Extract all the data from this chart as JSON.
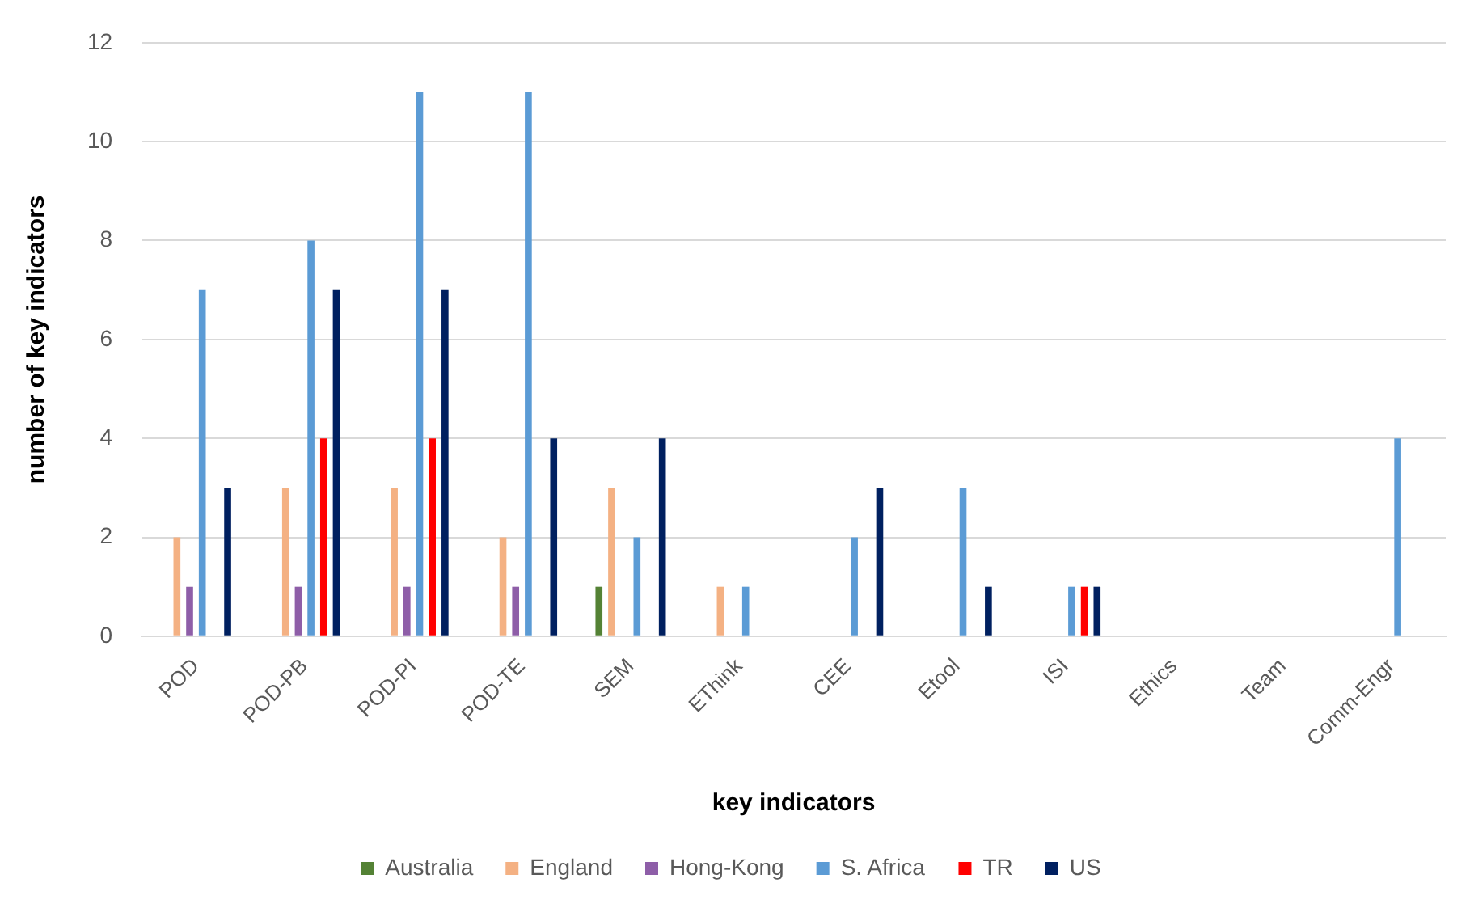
{
  "chart_data": {
    "type": "bar",
    "xlabel": "key indicators",
    "ylabel": "number of key indicators",
    "categories": [
      "POD",
      "POD-PB",
      "POD-PI",
      "POD-TE",
      "SEM",
      "EThink",
      "CEE",
      "Etool",
      "ISI",
      "Ethics",
      "Team",
      "Comm-Engr"
    ],
    "series": [
      {
        "name": "Australia",
        "color": "#548235",
        "values": [
          0,
          0,
          0,
          0,
          1,
          0,
          0,
          0,
          0,
          0,
          0,
          0
        ]
      },
      {
        "name": "England",
        "color": "#f4b183",
        "values": [
          2,
          3,
          3,
          2,
          3,
          1,
          0,
          0,
          0,
          0,
          0,
          0
        ]
      },
      {
        "name": "Hong-Kong",
        "color": "#8e5ea8",
        "values": [
          1,
          1,
          1,
          1,
          0,
          0,
          0,
          0,
          0,
          0,
          0,
          0
        ]
      },
      {
        "name": "S. Africa",
        "color": "#5b9bd5",
        "values": [
          7,
          8,
          11,
          11,
          2,
          1,
          2,
          3,
          1,
          0,
          0,
          4
        ]
      },
      {
        "name": "TR",
        "color": "#ff0000",
        "values": [
          0,
          4,
          4,
          0,
          0,
          0,
          0,
          0,
          1,
          0,
          0,
          0
        ]
      },
      {
        "name": "US",
        "color": "#002060",
        "values": [
          3,
          7,
          7,
          4,
          4,
          0,
          3,
          1,
          1,
          0,
          0,
          0
        ]
      }
    ],
    "ylim": [
      0,
      12
    ],
    "yticks": [
      0,
      2,
      4,
      6,
      8,
      10,
      12
    ],
    "grid": "y",
    "legend": "bottom"
  }
}
